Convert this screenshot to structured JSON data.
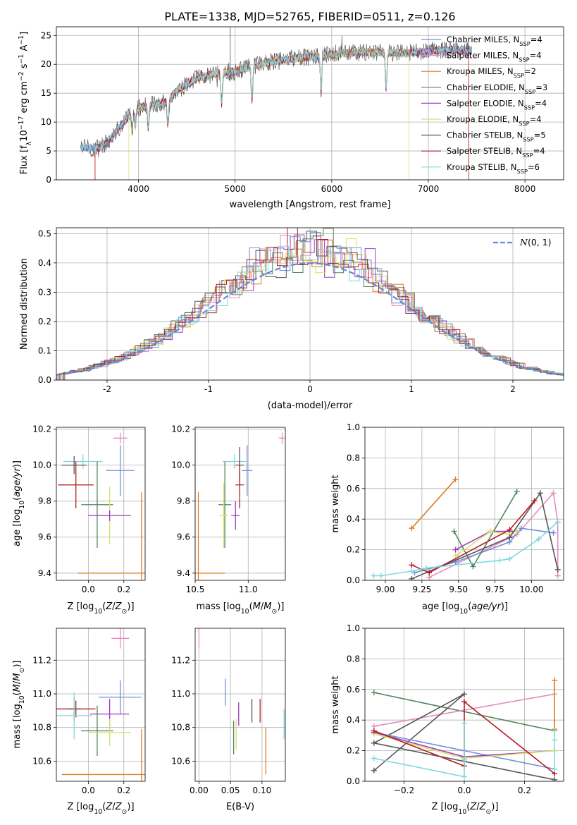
{
  "figure_title": "PLATE=1338, MJD=52765, FIBERID=0511, z=0.126",
  "colors": {
    "chabrier_miles": "#6f8fd8",
    "salpeter_miles": "#e48cc0",
    "kroupa_miles": "#e07b22",
    "chabrier_elodie": "#55845d",
    "salpeter_elodie": "#9c3bbf",
    "kroupa_elodie": "#d8e06a",
    "chabrier_stelib": "#555555",
    "salpeter_stelib": "#b51d24",
    "kroupa_stelib": "#80d8dc",
    "normal_curve": "#5b8ad6",
    "grid": "#b0b0b0"
  },
  "chart_data": [
    {
      "type": "line",
      "id": "spectrum",
      "xlabel": "wavelength [Angstrom, rest frame]",
      "ylabel": "Flux [f_λ10^-17 erg cm^-2 s^-1 A^-1]",
      "xlim": [
        3150,
        8400
      ],
      "ylim": [
        0,
        26.5
      ],
      "xticks": [
        4000,
        5000,
        6000,
        7000,
        8000
      ],
      "yticks": [
        0,
        5,
        10,
        15,
        20,
        25
      ],
      "x_range": [
        3400,
        7450
      ],
      "continuum": [
        [
          3400,
          5.6
        ],
        [
          3600,
          5.5
        ],
        [
          3700,
          7
        ],
        [
          3900,
          11
        ],
        [
          4000,
          12.5
        ],
        [
          4100,
          12.8
        ],
        [
          4300,
          13.5
        ],
        [
          4400,
          15.5
        ],
        [
          4600,
          17.5
        ],
        [
          4800,
          18.5
        ],
        [
          5000,
          18.8
        ],
        [
          5200,
          19.8
        ],
        [
          5400,
          20.5
        ],
        [
          5600,
          21
        ],
        [
          5800,
          21.3
        ],
        [
          6000,
          21.7
        ],
        [
          6200,
          22
        ],
        [
          6400,
          22.1
        ],
        [
          6600,
          22
        ],
        [
          6800,
          22
        ],
        [
          7000,
          22.3
        ],
        [
          7200,
          22.5
        ],
        [
          7450,
          22.5
        ]
      ],
      "absorption_features": [
        [
          3934,
          9
        ],
        [
          3968,
          8
        ],
        [
          4102,
          11
        ],
        [
          4304,
          11.5
        ],
        [
          4861,
          16.5
        ],
        [
          5175,
          17
        ],
        [
          5890,
          18.5
        ],
        [
          6563,
          18
        ]
      ],
      "legend": [
        {
          "label": "Chabrier MILES, N",
          "sub": "SSP",
          "suffix": "=4",
          "color_key": "chabrier_miles"
        },
        {
          "label": "Salpeter MILES, N",
          "sub": "SSP",
          "suffix": "=4",
          "color_key": "salpeter_miles"
        },
        {
          "label": "Kroupa MILES, N",
          "sub": "SSP",
          "suffix": "=2",
          "color_key": "kroupa_miles"
        },
        {
          "label": "Chabrier ELODIE, N",
          "sub": "SSP",
          "suffix": "=3",
          "color_key": "chabrier_elodie"
        },
        {
          "label": "Salpeter ELODIE, N",
          "sub": "SSP",
          "suffix": "=4",
          "color_key": "salpeter_elodie"
        },
        {
          "label": "Kroupa ELODIE, N",
          "sub": "SSP",
          "suffix": "=4",
          "color_key": "kroupa_elodie"
        },
        {
          "label": "Chabrier STELIB, N",
          "sub": "SSP",
          "suffix": "=5",
          "color_key": "chabrier_stelib"
        },
        {
          "label": "Salpeter STELIB, N",
          "sub": "SSP",
          "suffix": "=4",
          "color_key": "salpeter_stelib"
        },
        {
          "label": "Kroupa STELIB, N",
          "sub": "SSP",
          "suffix": "=6",
          "color_key": "kroupa_stelib"
        }
      ],
      "model_edges": [
        {
          "model": "kroupa_miles",
          "start": 3550,
          "end": 7420
        },
        {
          "model": "salpeter_stelib",
          "start": 3550,
          "end": 7420
        },
        {
          "model": "kroupa_elodie",
          "start": 3900,
          "end": 6800
        }
      ]
    },
    {
      "type": "histogram",
      "id": "residuals",
      "xlabel": "(data-model)/error",
      "ylabel": "Normed distribution",
      "xlim": [
        -2.5,
        2.5
      ],
      "ylim": [
        0,
        0.52
      ],
      "xticks": [
        -2,
        -1,
        0,
        1,
        2
      ],
      "yticks": [
        0.0,
        0.1,
        0.2,
        0.3,
        0.4,
        0.5
      ],
      "bin_width": 0.1,
      "legend": "N(0,1)",
      "series_offsets": {
        "chabrier_miles": 0.3,
        "salpeter_miles": 0.6,
        "kroupa_miles": 1.4,
        "chabrier_elodie": 2.2,
        "salpeter_elodie": 3.1,
        "kroupa_elodie": 4.0,
        "chabrier_stelib": 4.7,
        "salpeter_stelib": 5.5,
        "kroupa_stelib": 6.3
      }
    },
    {
      "type": "errorbar",
      "id": "age_vs_Z",
      "xlabel": "Z [log10(Z/Z⊙)]",
      "ylabel": "age [log10(age/yr)]",
      "xlim": [
        -0.18,
        0.32
      ],
      "ylim": [
        9.36,
        10.21
      ],
      "xticks": [
        0.0,
        0.2
      ],
      "yticks": [
        9.4,
        9.6,
        9.8,
        10.0,
        10.2
      ],
      "points": [
        {
          "model": "salpeter_miles",
          "x": 0.18,
          "y": 10.15,
          "xerr": 0.04,
          "yerr": 0.03
        },
        {
          "model": "chabrier_miles",
          "x": 0.18,
          "y": 9.97,
          "xerr": 0.08,
          "yerr": 0.14
        },
        {
          "model": "kroupa_stelib",
          "x": -0.03,
          "y": 10.02,
          "xerr": 0.11,
          "yerr": 0.04
        },
        {
          "model": "chabrier_stelib",
          "x": -0.08,
          "y": 10.0,
          "xerr": 0.07,
          "yerr": 0.05
        },
        {
          "model": "salpeter_stelib",
          "x": -0.07,
          "y": 9.89,
          "xerr": 0.1,
          "yerr": 0.13
        },
        {
          "model": "chabrier_elodie",
          "x": 0.05,
          "y": 9.78,
          "xerr": 0.09,
          "yerr": 0.24
        },
        {
          "model": "kroupa_elodie",
          "x": 0.12,
          "y": 9.72,
          "xerr": 0.11,
          "yerr": 0.16
        },
        {
          "model": "salpeter_elodie",
          "x": 0.12,
          "y": 9.72,
          "xerr": 0.12,
          "yerr": 0.03
        },
        {
          "model": "kroupa_miles",
          "x": 0.3,
          "y": 9.4,
          "xerr": 0.36,
          "yerr": 0.45
        }
      ]
    },
    {
      "type": "errorbar",
      "id": "age_vs_mass",
      "xlabel": "mass [log10(M/M⊙)]",
      "ylabel": "",
      "xlim": [
        10.5,
        11.35
      ],
      "ylim": [
        9.36,
        10.21
      ],
      "xticks": [
        10.5,
        11.0
      ],
      "yticks": [
        9.4,
        9.6,
        9.8,
        10.0,
        10.2
      ],
      "points": [
        {
          "model": "salpeter_miles",
          "x": 11.32,
          "y": 10.15,
          "xerr": 0.03,
          "yerr": 0.03
        },
        {
          "model": "chabrier_miles",
          "x": 10.99,
          "y": 9.97,
          "xerr": 0.05,
          "yerr": 0.14
        },
        {
          "model": "kroupa_stelib",
          "x": 10.87,
          "y": 10.02,
          "xerr": 0.11,
          "yerr": 0.04
        },
        {
          "model": "chabrier_stelib",
          "x": 10.92,
          "y": 10.0,
          "xerr": 0.04,
          "yerr": 0.1
        },
        {
          "model": "salpeter_stelib",
          "x": 10.92,
          "y": 9.89,
          "xerr": 0.04,
          "yerr": 0.13
        },
        {
          "model": "chabrier_elodie",
          "x": 10.78,
          "y": 9.78,
          "xerr": 0.06,
          "yerr": 0.24
        },
        {
          "model": "kroupa_elodie",
          "x": 10.77,
          "y": 9.72,
          "xerr": 0.04,
          "yerr": 0.18
        },
        {
          "model": "salpeter_elodie",
          "x": 10.88,
          "y": 9.72,
          "xerr": 0.04,
          "yerr": 0.08
        },
        {
          "model": "kroupa_miles",
          "x": 10.53,
          "y": 9.4,
          "xerr": 0.25,
          "yerr": 0.45
        }
      ]
    },
    {
      "type": "line",
      "id": "mass_weight_vs_age",
      "xlabel": "age [log10(age/yr)]",
      "ylabel": "mass weight",
      "xlim": [
        8.86,
        10.22
      ],
      "ylim": [
        0,
        1.0
      ],
      "xticks": [
        9.0,
        9.25,
        9.5,
        9.75,
        10.0
      ],
      "yticks": [
        0.0,
        0.2,
        0.4,
        0.6,
        0.8,
        1.0
      ],
      "series": [
        {
          "model": "kroupa_miles",
          "x": [
            9.18,
            9.48
          ],
          "y": [
            0.34,
            0.66
          ]
        },
        {
          "model": "salpeter_miles",
          "x": [
            9.3,
            9.9,
            10.15,
            10.18,
            10.18
          ],
          "y": [
            0.02,
            0.3,
            0.57,
            0.38,
            0.03
          ]
        },
        {
          "model": "chabrier_miles",
          "x": [
            9.2,
            9.48,
            9.85,
            9.93,
            10.15
          ],
          "y": [
            0.05,
            0.12,
            0.25,
            0.34,
            0.31
          ]
        },
        {
          "model": "chabrier_elodie",
          "x": [
            9.47,
            9.6,
            9.9
          ],
          "y": [
            0.32,
            0.09,
            0.58
          ]
        },
        {
          "model": "salpeter_elodie",
          "x": [
            9.48,
            9.72,
            9.85,
            9.9
          ],
          "y": [
            0.2,
            0.32,
            0.32,
            0.32
          ]
        },
        {
          "model": "kroupa_elodie",
          "x": [
            9.48,
            9.72,
            9.85,
            9.9
          ],
          "y": [
            0.16,
            0.32,
            0.3,
            0.32
          ]
        },
        {
          "model": "chabrier_stelib",
          "x": [
            9.18,
            9.85,
            10.06,
            10.18
          ],
          "y": [
            0.01,
            0.28,
            0.57,
            0.07
          ]
        },
        {
          "model": "salpeter_stelib",
          "x": [
            9.18,
            9.3,
            9.85,
            10.02
          ],
          "y": [
            0.1,
            0.05,
            0.33,
            0.52
          ]
        },
        {
          "model": "kroupa_stelib",
          "x": [
            8.92,
            8.97,
            9.18,
            9.28,
            9.78,
            9.85,
            10.05,
            10.18
          ],
          "y": [
            0.03,
            0.03,
            0.06,
            0.08,
            0.13,
            0.14,
            0.27,
            0.38
          ]
        }
      ]
    },
    {
      "type": "errorbar",
      "id": "mass_vs_Z",
      "xlabel": "Z [log10(Z/Z⊙)]",
      "ylabel": "mass [log10(M/M⊙)]",
      "xlim": [
        -0.18,
        0.32
      ],
      "ylim": [
        10.48,
        11.39
      ],
      "xticks": [
        0.0,
        0.2
      ],
      "yticks": [
        10.6,
        10.8,
        11.0,
        11.2
      ],
      "points": [
        {
          "model": "salpeter_miles",
          "x": 0.18,
          "y": 11.33,
          "xerr": 0.05,
          "yerr": 0.06
        },
        {
          "model": "chabrier_miles",
          "x": 0.18,
          "y": 10.98,
          "xerr": 0.12,
          "yerr": 0.1
        },
        {
          "model": "salpeter_stelib",
          "x": -0.07,
          "y": 10.91,
          "xerr": 0.11,
          "yerr": 0.05
        },
        {
          "model": "chabrier_stelib",
          "x": -0.08,
          "y": 10.91,
          "xerr": 0.04,
          "yerr": 0.07
        },
        {
          "model": "salpeter_elodie",
          "x": 0.12,
          "y": 10.88,
          "xerr": 0.11,
          "yerr": 0.09
        },
        {
          "model": "kroupa_stelib",
          "x": -0.08,
          "y": 10.87,
          "xerr": 0.1,
          "yerr": 0.14
        },
        {
          "model": "chabrier_elodie",
          "x": 0.05,
          "y": 10.78,
          "xerr": 0.09,
          "yerr": 0.15
        },
        {
          "model": "kroupa_elodie",
          "x": 0.12,
          "y": 10.77,
          "xerr": 0.12,
          "yerr": 0.08
        },
        {
          "model": "kroupa_miles",
          "x": 0.3,
          "y": 10.52,
          "xerr": 0.45,
          "yerr": 0.27
        }
      ]
    },
    {
      "type": "errorbar",
      "id": "mass_vs_ebv",
      "xlabel": "E(B-V)",
      "ylabel": "",
      "xlim": [
        -0.006,
        0.137
      ],
      "ylim": [
        10.48,
        11.39
      ],
      "xticks": [
        0.0,
        0.05,
        0.1
      ],
      "yticks": [
        10.6,
        10.8,
        11.0,
        11.2
      ],
      "points": [
        {
          "model": "salpeter_miles",
          "x": 0.0,
          "y": 11.33,
          "xerr": 0,
          "yerr": 0.06
        },
        {
          "model": "chabrier_miles",
          "x": 0.042,
          "y": 11.01,
          "xerr": 0,
          "yerr": 0.08
        },
        {
          "model": "salpeter_elodie",
          "x": 0.063,
          "y": 10.88,
          "xerr": 0,
          "yerr": 0.07
        },
        {
          "model": "chabrier_elodie",
          "x": 0.055,
          "y": 10.74,
          "xerr": 0,
          "yerr": 0.1
        },
        {
          "model": "kroupa_elodie",
          "x": 0.059,
          "y": 10.76,
          "xerr": 0,
          "yerr": 0.09
        },
        {
          "model": "chabrier_stelib",
          "x": 0.084,
          "y": 10.9,
          "xerr": 0,
          "yerr": 0.07
        },
        {
          "model": "salpeter_stelib",
          "x": 0.097,
          "y": 10.9,
          "xerr": 0,
          "yerr": 0.07
        },
        {
          "model": "kroupa_miles",
          "x": 0.106,
          "y": 10.66,
          "xerr": 0,
          "yerr": 0.14
        },
        {
          "model": "kroupa_stelib",
          "x": 0.135,
          "y": 10.82,
          "xerr": 0,
          "yerr": 0.09
        }
      ]
    },
    {
      "type": "line",
      "id": "mass_weight_vs_Z",
      "xlabel": "Z [log10(Z/Z⊙)]",
      "ylabel": "mass weight",
      "xlim": [
        -0.33,
        0.33
      ],
      "ylim": [
        0,
        1.0
      ],
      "xticks": [
        -0.2,
        0.0,
        0.2
      ],
      "yticks": [
        0.0,
        0.2,
        0.4,
        0.6,
        0.8,
        1.0
      ],
      "series": [
        {
          "model": "chabrier_elodie",
          "x": [
            -0.3,
            0.3
          ],
          "y": [
            0.58,
            0.33
          ]
        },
        {
          "model": "salpeter_miles",
          "x": [
            -0.3,
            0.3
          ],
          "y": [
            0.36,
            0.57
          ]
        },
        {
          "model": "chabrier_stelib",
          "x": [
            -0.3,
            0.0,
            -0.3,
            0.3
          ],
          "y": [
            0.07,
            0.57,
            0.25,
            0.01
          ]
        },
        {
          "model": "chabrier_miles",
          "x": [
            -0.3,
            0.0,
            0.3
          ],
          "y": [
            0.32,
            0.2,
            0.08
          ]
        },
        {
          "model": "salpeter_elodie",
          "x": [
            -0.3,
            0.0,
            0.3
          ],
          "y": [
            0.32,
            0.16,
            0.2
          ]
        },
        {
          "model": "kroupa_elodie",
          "x": [
            -0.3,
            0.0,
            0.3
          ],
          "y": [
            0.31,
            0.15,
            0.2
          ]
        },
        {
          "model": "salpeter_stelib",
          "x": [
            -0.3,
            0.0,
            0.0,
            0.3
          ],
          "y": [
            0.33,
            0.1,
            0.52,
            0.05
          ]
        },
        {
          "model": "kroupa_stelib",
          "x": [
            -0.3,
            0.0,
            0.0,
            0.0
          ],
          "y": [
            0.15,
            0.03,
            0.14,
            0.38
          ]
        },
        {
          "model": "kroupa_miles",
          "x": [
            0.3,
            0.3
          ],
          "y": [
            0.34,
            0.66
          ]
        },
        {
          "model": "kroupa_stelib",
          "x": [
            0.3,
            0.3,
            0.3
          ],
          "y": [
            0.08,
            0.27,
            0.33
          ]
        }
      ]
    }
  ]
}
